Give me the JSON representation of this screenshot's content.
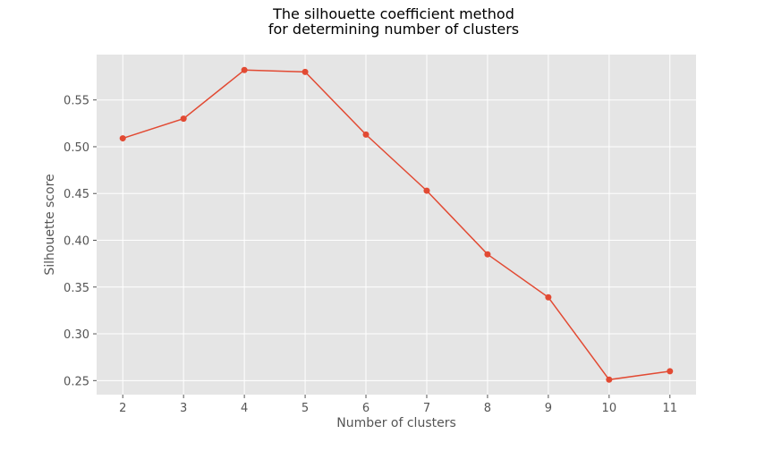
{
  "chart_data": {
    "type": "line",
    "title_lines": [
      "The silhouette coefficient method",
      "for determining number of clusters"
    ],
    "xlabel": "Number of clusters",
    "ylabel": "Silhouette score",
    "x": [
      2,
      3,
      4,
      5,
      6,
      7,
      8,
      9,
      10,
      11
    ],
    "series": [
      {
        "values": [
          0.509,
          0.53,
          0.582,
          0.58,
          0.513,
          0.453,
          0.385,
          0.339,
          0.251,
          0.26
        ],
        "color": "#e24a33",
        "marker": "circle"
      }
    ],
    "xticks": [
      "2",
      "3",
      "4",
      "5",
      "6",
      "7",
      "8",
      "9",
      "10",
      "11"
    ],
    "yticks": [
      "0.25",
      "0.30",
      "0.35",
      "0.40",
      "0.45",
      "0.50",
      "0.55"
    ],
    "ytick_values": [
      0.25,
      0.3,
      0.35,
      0.4,
      0.45,
      0.5,
      0.55
    ],
    "xlim": [
      1.57,
      11.43
    ],
    "ylim": [
      0.235,
      0.5985
    ],
    "grid": true,
    "background": "#e5e5e5",
    "grid_color": "#ffffff"
  }
}
